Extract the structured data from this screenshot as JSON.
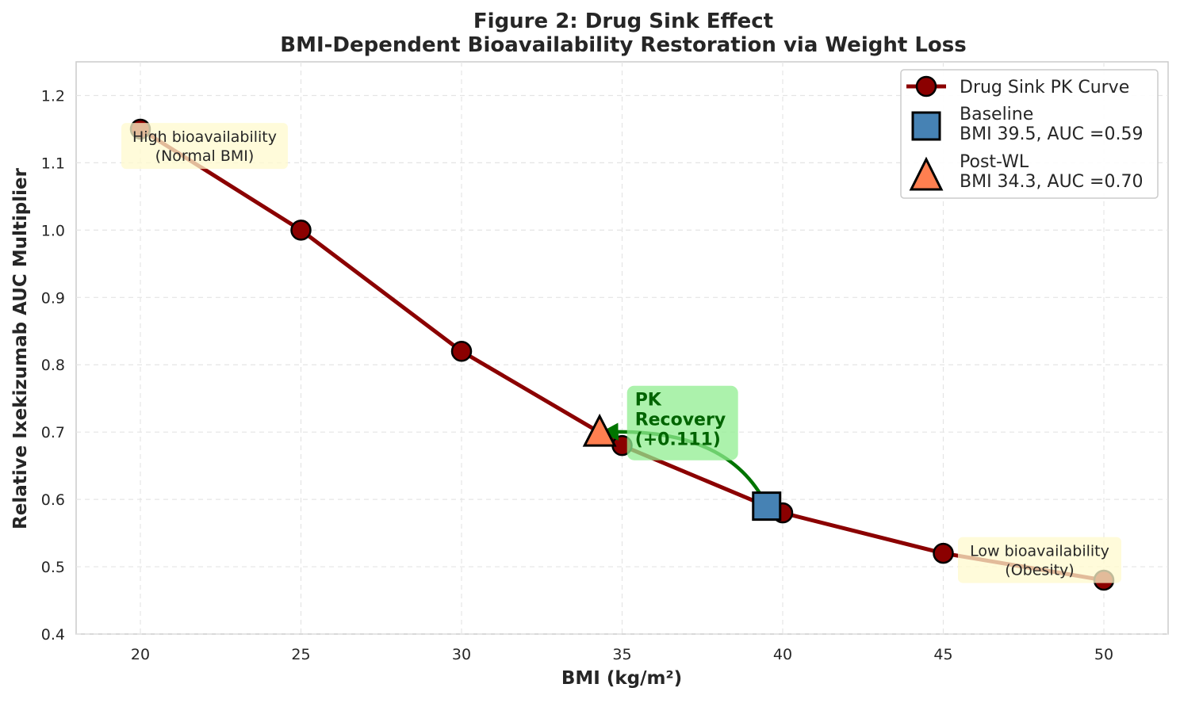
{
  "chart_data": {
    "type": "line",
    "title": "Figure 2: Drug Sink Effect",
    "subtitle": "BMI-Dependent Bioavailability Restoration via Weight Loss",
    "xlabel": "BMI (kg/m²)",
    "ylabel": "Relative Ixekizumab AUC Multiplier",
    "xlim": [
      18,
      52
    ],
    "ylim": [
      0.4,
      1.25
    ],
    "xticks": [
      20,
      25,
      30,
      35,
      40,
      45,
      50
    ],
    "yticks": [
      0.4,
      0.5,
      0.6,
      0.7,
      0.8,
      0.9,
      1.0,
      1.1,
      1.2
    ],
    "xtick_labels": [
      "20",
      "25",
      "30",
      "35",
      "40",
      "45",
      "50"
    ],
    "ytick_labels": [
      "0.4",
      "0.5",
      "0.6",
      "0.7",
      "0.8",
      "0.9",
      "1.0",
      "1.1",
      "1.2"
    ],
    "grid": true,
    "legend_position": "top-right",
    "series": [
      {
        "name": "Drug Sink PK Curve",
        "color": "#8b0000",
        "x": [
          20,
          25,
          30,
          35,
          40,
          45,
          50
        ],
        "y": [
          1.15,
          1.0,
          0.82,
          0.68,
          0.58,
          0.52,
          0.48
        ]
      }
    ],
    "markers": [
      {
        "name": "baseline",
        "shape": "square",
        "color": "#4682b4",
        "x": 39.5,
        "y": 0.59,
        "legend_title": "Baseline",
        "legend_detail": "BMI 39.5, AUC =0.59"
      },
      {
        "name": "post-wl",
        "shape": "triangle",
        "color": "#ff7f50",
        "x": 34.3,
        "y": 0.7,
        "legend_title": "Post-WL",
        "legend_detail": "BMI 34.3, AUC =0.70"
      }
    ],
    "annotations": {
      "high": {
        "line1": "High bioavailability",
        "line2": "(Normal BMI)",
        "x": 22,
        "y": 1.125
      },
      "low": {
        "line1": "Low bioavailability",
        "line2": "(Obesity)",
        "x": 48,
        "y": 0.51
      },
      "recovery": {
        "line1": "PK",
        "line2": "Recovery",
        "line3": "(+0.111)",
        "x": 35.4,
        "y": 0.73,
        "color": "#006400",
        "arrow_from": [
          39.4,
          0.6
        ],
        "arrow_to": [
          34.55,
          0.7
        ]
      }
    }
  }
}
